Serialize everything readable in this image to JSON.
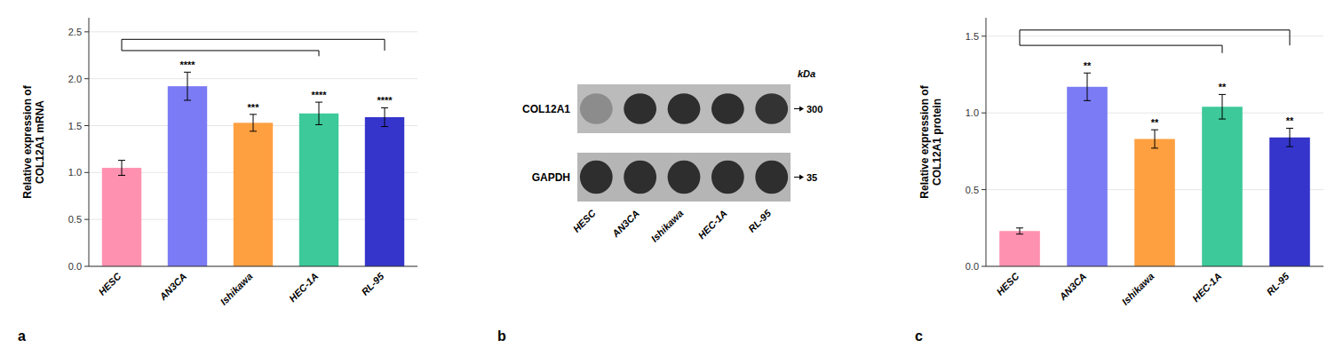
{
  "chart_data": [
    {
      "type": "bar",
      "title": "a",
      "categories": [
        "HESC",
        "AN3CA",
        "Ishikawa",
        "HEC-1A",
        "RL-95"
      ],
      "values": [
        1.05,
        1.92,
        1.53,
        1.63,
        1.59
      ],
      "errors": [
        0.08,
        0.15,
        0.09,
        0.12,
        0.1
      ],
      "colors": [
        "#FF91B0",
        "#7B7BF5",
        "#FFA040",
        "#3DC99A",
        "#3535CC"
      ],
      "ylabel": "Relative expression of\nCOL12A1 mRNA",
      "ylim": [
        0,
        2.65
      ],
      "yticks": [
        {
          "value": 0.0,
          "label": "0.0"
        },
        0.5,
        {
          "value": 1.0,
          "label": "1.0"
        },
        1.5,
        {
          "value": 2.0,
          "label": "2.0"
        },
        2.5
      ],
      "annotations": [
        null,
        "****",
        "***",
        "****",
        "****"
      ],
      "brackets": {
        "outer": 2.42,
        "inner": 2.3
      }
    },
    {
      "type": "blot",
      "title": "b",
      "categories": [
        "HESC",
        "AN3CA",
        "Ishikawa",
        "HEC-1A",
        "RL-95"
      ],
      "unit_label": "kDa",
      "rows": [
        {
          "name": "COL12A1",
          "size_label": "300",
          "color": "#BBBBBB",
          "values": [
            0.55,
            0.18,
            0.18,
            0.18,
            0.2
          ]
        },
        {
          "name": "GAPDH",
          "size_label": "35",
          "color": "#B5B5B5",
          "values": [
            0.18,
            0.18,
            0.18,
            0.18,
            0.18
          ]
        }
      ]
    },
    {
      "type": "bar",
      "title": "c",
      "categories": [
        "HESC",
        "AN3CA",
        "Ishikawa",
        "HEC-1A",
        "RL-95"
      ],
      "values": [
        0.23,
        1.17,
        0.83,
        1.04,
        0.84
      ],
      "errors": [
        0.02,
        0.09,
        0.06,
        0.08,
        0.06
      ],
      "colors": [
        "#FF91B0",
        "#7B7BF5",
        "#FFA040",
        "#3DC99A",
        "#3535CC"
      ],
      "ylabel": "Relative expression of\nCOL12A1 protein",
      "ylim": [
        0,
        1.62
      ],
      "yticks": [
        {
          "value": 0.0,
          "label": "0.0"
        },
        0.5,
        {
          "value": 1.0,
          "label": "1.0"
        },
        1.5
      ],
      "annotations": [
        null,
        "**",
        "**",
        "**",
        "**"
      ],
      "brackets": {
        "outer": 1.54,
        "inner": 1.44
      }
    }
  ]
}
